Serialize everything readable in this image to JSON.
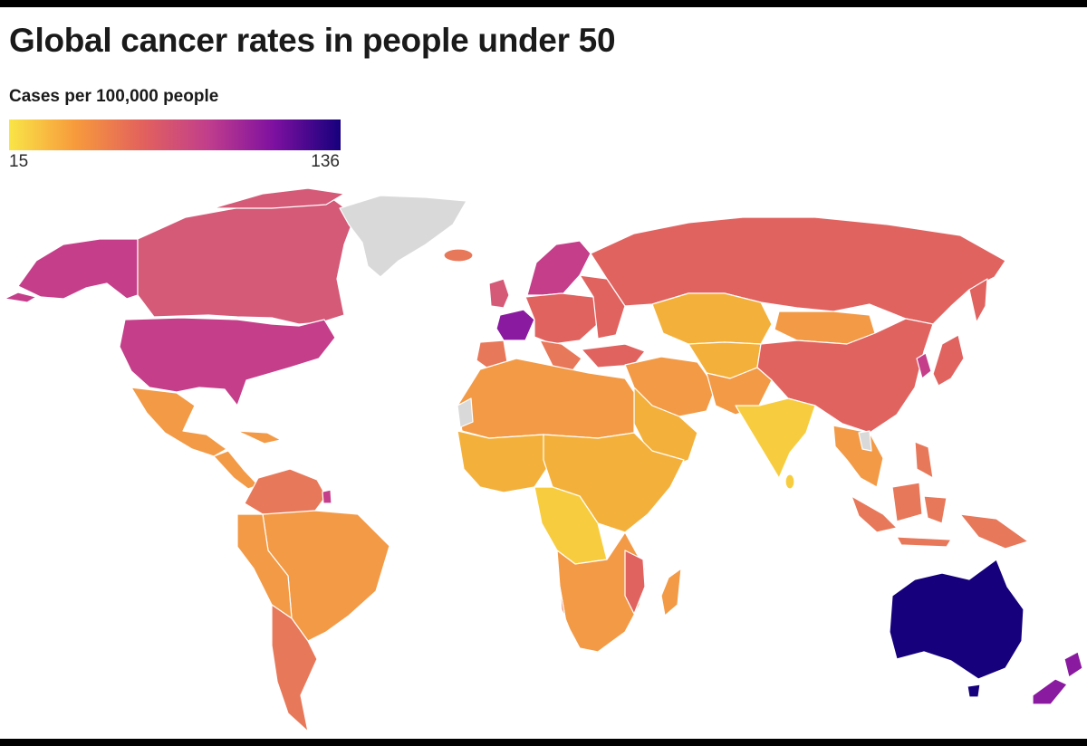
{
  "title": "Global cancer rates in people under 50",
  "legend": {
    "label": "Cases per 100,000 people",
    "min": "15",
    "max": "136",
    "gradient": [
      "#f9e547",
      "#f79a3c",
      "#e3625c",
      "#c13e8c",
      "#7d10a0",
      "#16007c"
    ]
  },
  "colors": {
    "no_data": "#d9d9d9",
    "very_low": "#f7cd3f",
    "low": "#f3b13c",
    "low_mid": "#f39a46",
    "mid": "#e8785a",
    "mid_high": "#e06360",
    "high": "#d45a78",
    "higher": "#c53e8a",
    "very_high": "#8a1aa0",
    "highest": "#16007c",
    "ocean": "#ffffff"
  }
}
